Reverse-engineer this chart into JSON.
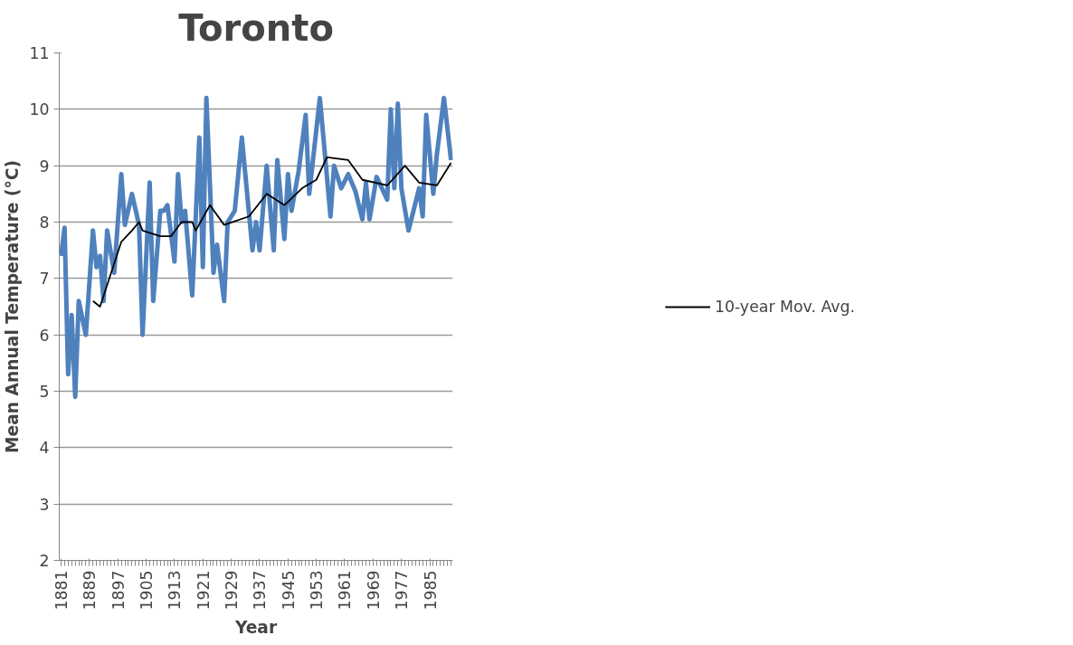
{
  "chart_data": {
    "type": "line",
    "title": "Toronto",
    "xlabel": "Year",
    "ylabel": "Mean Annual Temperature (°C)",
    "xlim": [
      1880.5,
      1991.5
    ],
    "xticks": [
      1881,
      1889,
      1897,
      1905,
      1913,
      1921,
      1929,
      1937,
      1945,
      1953,
      1961,
      1969,
      1977,
      1985
    ],
    "ylim": [
      2,
      11
    ],
    "yticks": [
      2,
      3,
      4,
      5,
      6,
      7,
      8,
      9,
      10,
      11
    ],
    "grid": "y",
    "legend": "right",
    "marker": "none",
    "line_style": "solid",
    "series": [
      {
        "color": "#4f81bd",
        "x": [
          1881,
          1882,
          1883,
          1884,
          1885,
          1886,
          1888,
          1890,
          1891,
          1892,
          1893,
          1894,
          1896,
          1898,
          1899,
          1901,
          1903,
          1904,
          1906,
          1907,
          1909,
          1910,
          1911,
          1913,
          1914,
          1915,
          1916,
          1918,
          1920,
          1921,
          1922,
          1924,
          1925,
          1927,
          1928,
          1930,
          1932,
          1935,
          1936,
          1937,
          1939,
          1941,
          1942,
          1944,
          1945,
          1946,
          1948,
          1950,
          1951,
          1954,
          1955,
          1957,
          1958,
          1960,
          1962,
          1964,
          1966,
          1967,
          1968,
          1970,
          1973,
          1974,
          1975,
          1976,
          1977,
          1979,
          1982,
          1983,
          1984,
          1986,
          1987,
          1989,
          1991
        ],
        "values": [
          7.4,
          7.9,
          5.3,
          6.35,
          4.9,
          6.6,
          6.0,
          7.85,
          7.2,
          7.4,
          6.6,
          7.85,
          7.1,
          8.85,
          7.95,
          8.5,
          7.95,
          6.0,
          8.7,
          6.6,
          8.2,
          8.2,
          8.3,
          7.3,
          8.85,
          8.0,
          8.2,
          6.7,
          9.5,
          7.2,
          10.2,
          7.1,
          7.6,
          6.6,
          8.0,
          8.2,
          9.5,
          7.5,
          8.0,
          7.5,
          9.0,
          7.5,
          9.1,
          7.7,
          8.85,
          8.2,
          8.9,
          9.9,
          8.5,
          10.2,
          9.5,
          8.1,
          9.0,
          8.6,
          8.85,
          8.55,
          8.05,
          8.7,
          8.05,
          8.8,
          8.4,
          10.0,
          8.6,
          10.1,
          8.6,
          7.85,
          8.6,
          8.1,
          9.9,
          8.5,
          9.2,
          10.2,
          9.1
        ]
      },
      {
        "name": "10-year Mov. Avg.",
        "color": "#000000",
        "x": [
          1890,
          1892,
          1898,
          1901,
          1903,
          1904,
          1909,
          1912,
          1915,
          1918,
          1919,
          1923,
          1927,
          1934,
          1939,
          1944,
          1949,
          1953,
          1956,
          1962,
          1966,
          1973,
          1978,
          1982,
          1987,
          1991
        ],
        "values": [
          6.6,
          6.5,
          7.65,
          7.85,
          8.0,
          7.85,
          7.75,
          7.75,
          8.0,
          8.0,
          7.85,
          8.3,
          7.95,
          8.1,
          8.5,
          8.3,
          8.6,
          8.75,
          9.15,
          9.1,
          8.75,
          8.65,
          9.0,
          8.7,
          8.65,
          9.05
        ]
      }
    ]
  }
}
